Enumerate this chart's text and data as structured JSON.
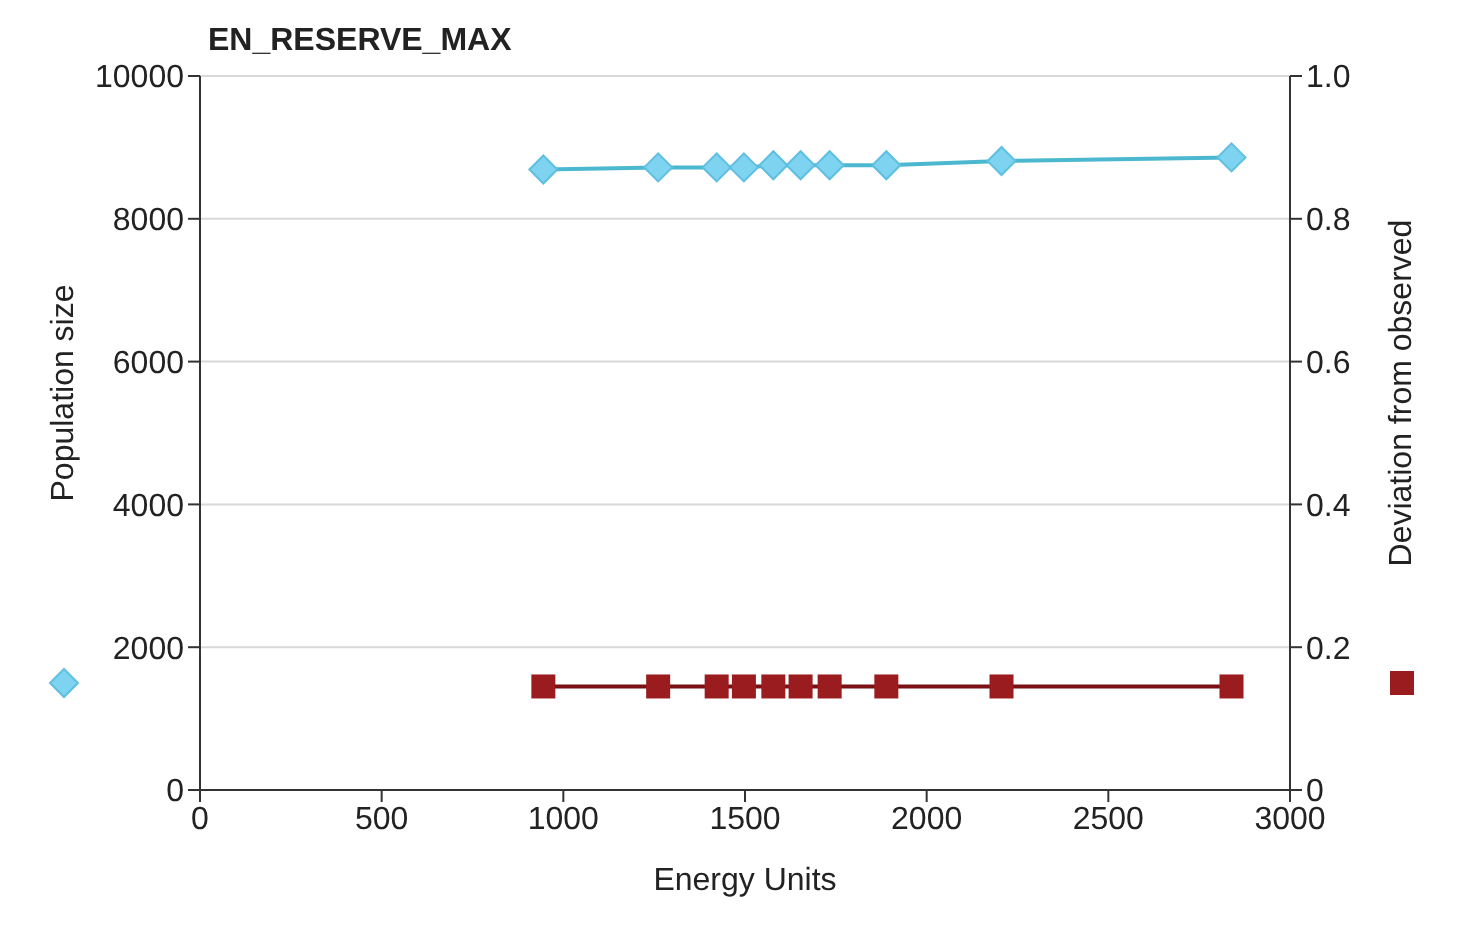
{
  "chart_data": {
    "type": "line",
    "title": "EN_RESERVE_MAX",
    "xlabel": "Energy Units",
    "ylabel": "Population size",
    "y2label": "Deviation from observed",
    "x": [
      945,
      1261,
      1422,
      1497,
      1578,
      1653,
      1733,
      1889,
      2206,
      2839
    ],
    "series": [
      {
        "color": "#7dd3f0",
        "values": [
          8690,
          8720,
          8720,
          8720,
          8750,
          8750,
          8750,
          8750,
          8810,
          8860
        ],
        "marker": "diamond"
      },
      {
        "color": "#9b1c1f",
        "values": [
          0.145,
          0.145,
          0.145,
          0.145,
          0.145,
          0.145,
          0.145,
          0.145,
          0.145,
          0.145
        ],
        "marker": "square",
        "axis": "y2"
      }
    ],
    "xlim": [
      0,
      3000
    ],
    "xticks": [
      0,
      500,
      1000,
      1500,
      2000,
      2500,
      3000
    ],
    "ylim": [
      0,
      10000
    ],
    "yticks": [
      0,
      2000,
      4000,
      6000,
      8000,
      10000
    ],
    "y2lim": [
      0,
      1
    ],
    "y2ticks": [
      {
        "value": 0,
        "label": "0"
      },
      {
        "value": 0.2,
        "label": "0.2"
      },
      {
        "value": 0.4,
        "label": "0.4"
      },
      {
        "value": 0.6,
        "label": "0.6"
      },
      {
        "value": 0.8,
        "label": "0.8"
      },
      {
        "value": 1,
        "label": "1.0"
      }
    ],
    "grid": "y",
    "line_style": "solid"
  }
}
